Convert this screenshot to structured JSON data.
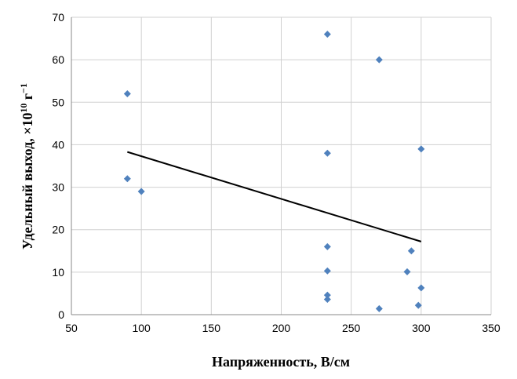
{
  "chart_data": {
    "type": "scatter",
    "title": "",
    "xlabel": "Напряженность, В/см",
    "ylabel_main": "Удельный выход, ×10",
    "ylabel_sup": "10",
    "ylabel_unit": " г",
    "ylabel_unit_sup": "−1",
    "xlim": [
      50,
      350
    ],
    "ylim": [
      0,
      70
    ],
    "x_ticks": [
      50,
      100,
      150,
      200,
      250,
      300,
      350
    ],
    "y_ticks": [
      0,
      10,
      20,
      30,
      40,
      50,
      60,
      70
    ],
    "grid": true,
    "marker_color": "#4f81bd",
    "trendline_color": "#000000",
    "points": [
      {
        "x": 90,
        "y": 52
      },
      {
        "x": 90,
        "y": 32
      },
      {
        "x": 100,
        "y": 29
      },
      {
        "x": 233,
        "y": 66
      },
      {
        "x": 233,
        "y": 38
      },
      {
        "x": 233,
        "y": 16
      },
      {
        "x": 233,
        "y": 10.3
      },
      {
        "x": 233,
        "y": 4.6
      },
      {
        "x": 233,
        "y": 3.6
      },
      {
        "x": 270,
        "y": 60
      },
      {
        "x": 270,
        "y": 1.4
      },
      {
        "x": 290,
        "y": 10.1
      },
      {
        "x": 293,
        "y": 15
      },
      {
        "x": 298,
        "y": 2.2
      },
      {
        "x": 300,
        "y": 39
      },
      {
        "x": 300,
        "y": 6.3
      }
    ],
    "trendline": {
      "x": [
        90,
        300
      ],
      "y": [
        38.3,
        17.2
      ]
    }
  }
}
